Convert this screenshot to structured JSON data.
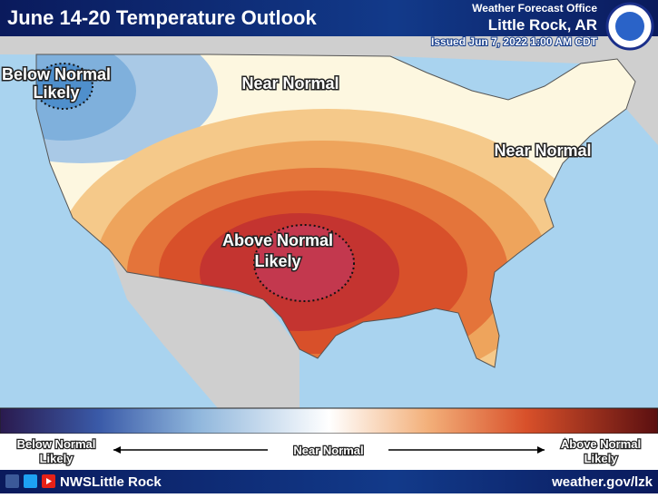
{
  "header": {
    "title": "June 14-20 Temperature Outlook",
    "office_label": "Weather Forecast Office",
    "office": "Little Rock, AR",
    "issued": "Issued Jun 7, 2022 1:00 AM CDT"
  },
  "map": {
    "labels": [
      {
        "lines": [
          "Below Normal",
          "Likely"
        ]
      },
      {
        "lines": [
          "Near Normal"
        ]
      },
      {
        "lines": [
          "Near Normal"
        ]
      },
      {
        "lines": [
          "Above Normal",
          "Likely"
        ]
      }
    ]
  },
  "legend": {
    "left": [
      "Below Normal",
      "Likely"
    ],
    "center": "Near Normal",
    "right": [
      "Above Normal",
      "Likely"
    ]
  },
  "footer": {
    "social": "NWSLittle Rock",
    "url": "weather.gov/lzk"
  }
}
